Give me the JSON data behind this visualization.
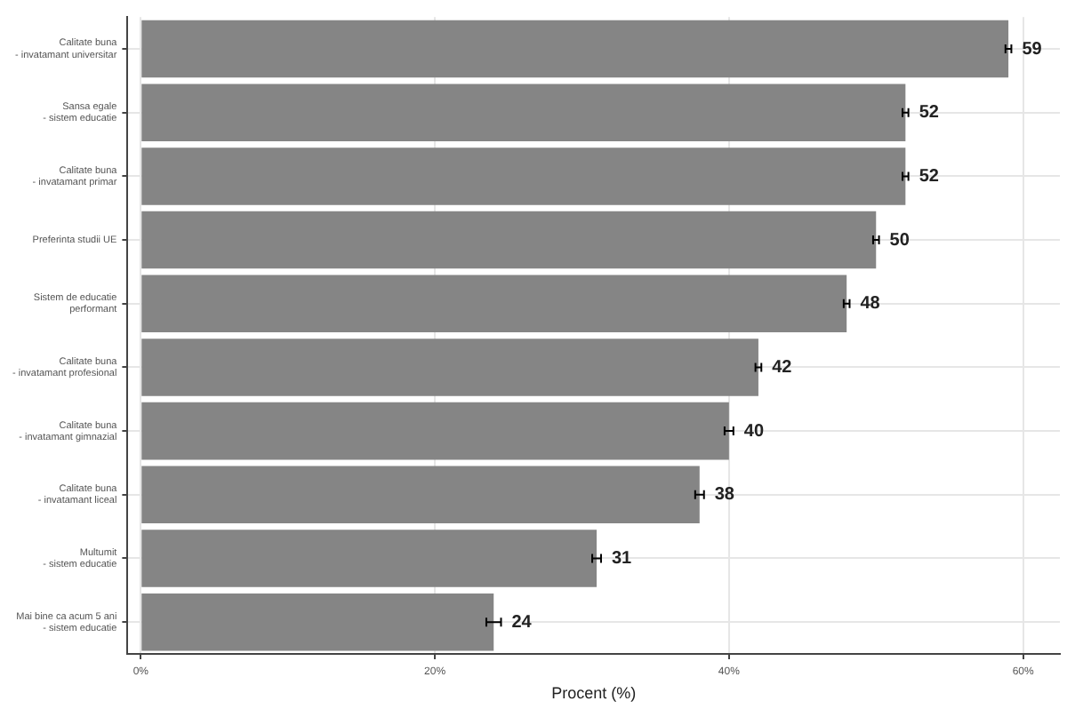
{
  "chart_data": {
    "type": "bar",
    "orientation": "horizontal",
    "xlabel": "Procent (%)",
    "categories": [
      "Calitate buna\n- invatamant universitar",
      "Sansa egale\n- sistem educatie",
      "Calitate buna\n- invatamant primar",
      "Preferinta studii UE",
      "Sistem de educatie\nperformant",
      "Calitate buna\n- invatamant profesional",
      "Calitate buna\n- invatamant gimnazial",
      "Calitate buna\n- invatamant liceal",
      "Multumit\n- sistem educatie",
      "Mai bine ca acum 5 ani\n- sistem educatie"
    ],
    "values": [
      59,
      52,
      52,
      50,
      48,
      42,
      40,
      38,
      31,
      24
    ],
    "errors": [
      0.2,
      0.2,
      0.2,
      0.2,
      0.2,
      0.2,
      0.3,
      0.3,
      0.3,
      0.5
    ],
    "color": "#858585",
    "data_labels": true,
    "xlim": [
      -0.9,
      62.5
    ],
    "xticks": [
      {
        "value": 0,
        "label": "0%"
      },
      {
        "value": 20,
        "label": "20%"
      },
      {
        "value": 40,
        "label": "40%"
      },
      {
        "value": 60,
        "label": "60%"
      }
    ],
    "grid": true
  }
}
